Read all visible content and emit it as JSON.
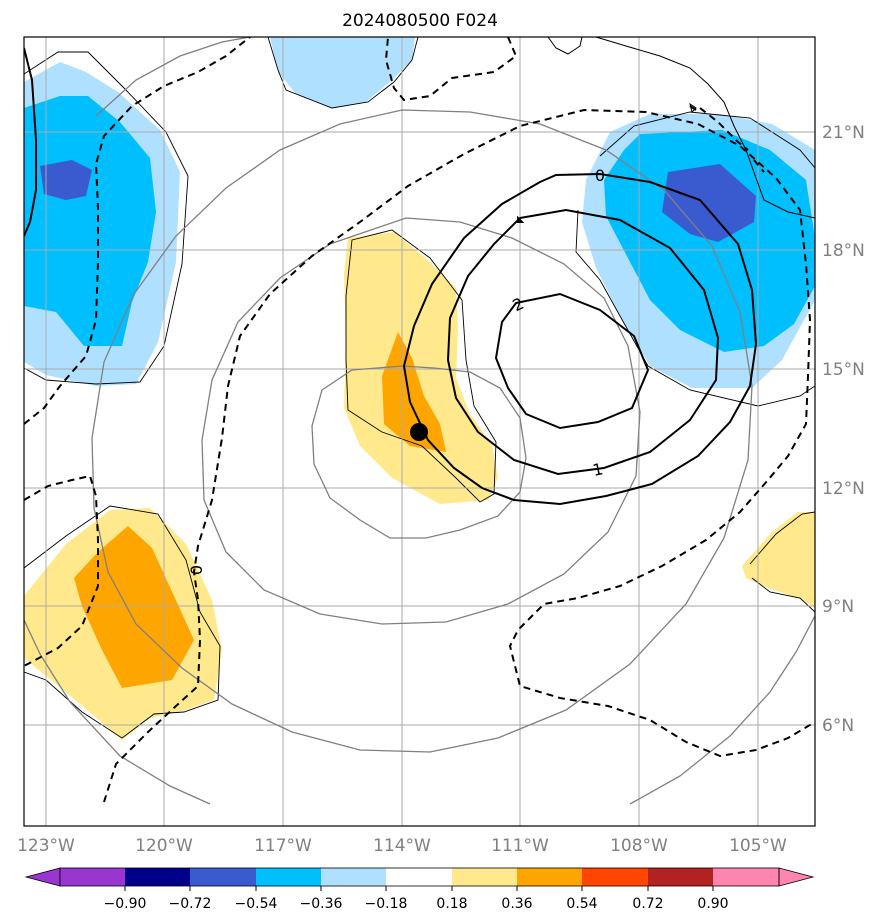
{
  "title": "2024080500 F024",
  "map": {
    "lon_range": [
      -124,
      -103
    ],
    "lat_range": [
      4,
      23
    ],
    "lon_ticks": [
      {
        "value": -123,
        "label": "123°W"
      },
      {
        "value": -120,
        "label": "120°W"
      },
      {
        "value": -117,
        "label": "117°W"
      },
      {
        "value": -114,
        "label": "114°W"
      },
      {
        "value": -111,
        "label": "111°W"
      },
      {
        "value": -108,
        "label": "108°W"
      },
      {
        "value": -105,
        "label": "105°W"
      }
    ],
    "lat_ticks": [
      {
        "value": 6,
        "label": "6°N"
      },
      {
        "value": 9,
        "label": "9°N"
      },
      {
        "value": 12,
        "label": "12°N"
      },
      {
        "value": 15,
        "label": "15°N"
      },
      {
        "value": 18,
        "label": "18°N"
      },
      {
        "value": 21,
        "label": "21°N"
      }
    ],
    "storm_center": {
      "lon": -113.6,
      "lat": 13.4
    },
    "contour_labels": [
      {
        "text": "0",
        "lon": -109.9,
        "lat": 20.0
      },
      {
        "text": "2",
        "lon": -111.0,
        "lat": 16.7
      },
      {
        "text": "1",
        "lon": -110.0,
        "lat": 12.5
      },
      {
        "text": "0",
        "lon": -118.8,
        "lat": 9.9
      }
    ]
  },
  "colorbar": {
    "colors": [
      "#9a36d0",
      "#00008b",
      "#3a5bd0",
      "#00bfff",
      "#b0e0ff",
      "#ffffff",
      "#ffe98c",
      "#ffa500",
      "#ff4500",
      "#b22222",
      "#ff85b0"
    ],
    "tick_labels": [
      "−0.90",
      "−0.72",
      "−0.54",
      "−0.36",
      "−0.18",
      "0.18",
      "0.36",
      "0.54",
      "0.72",
      "0.90"
    ]
  }
}
